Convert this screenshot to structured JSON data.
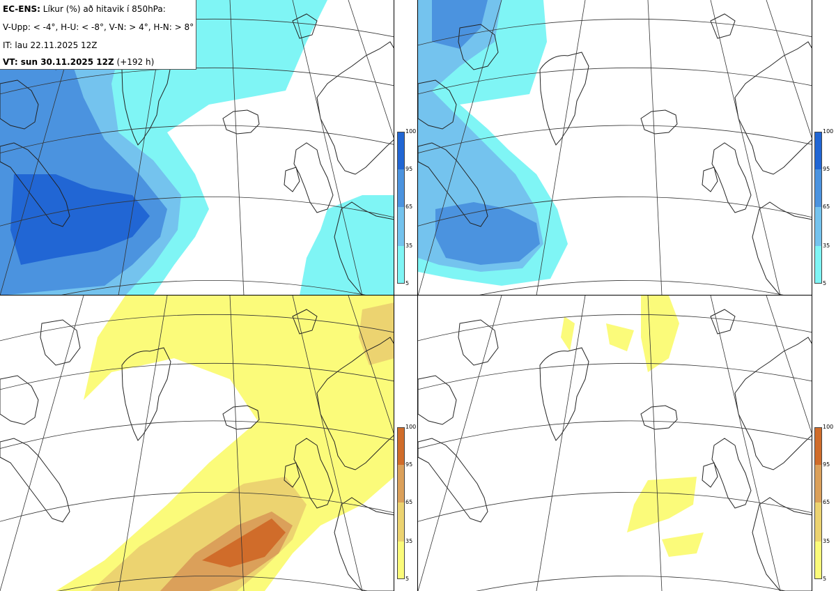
{
  "header": {
    "model": "EC-ENS:",
    "description": "Líkur (%) að hitavik í 850hPa:",
    "thresholds": "V-Upp: < -4°, H-U: < -8°, V-N: > 4°, H-N: > 8°",
    "initial_time": "IT: lau 22.11.2025 12Z",
    "valid_label": "VT: sun 30.11.2025 12Z",
    "valid_offset": "(+192 h)"
  },
  "panels": [
    {
      "id": "V-Upp",
      "palette": "blue"
    },
    {
      "id": "H-U",
      "palette": "blue"
    },
    {
      "id": "V-N",
      "palette": "yellow"
    },
    {
      "id": "H-N",
      "palette": "yellow"
    }
  ],
  "colorbar_blue": {
    "ticks": [
      "100",
      "95",
      "65",
      "35",
      "5"
    ],
    "colors": [
      "#2166d4",
      "#4b93df",
      "#74c3ee",
      "#7ff5f5"
    ]
  },
  "colorbar_warm": {
    "ticks": [
      "100",
      "95",
      "65",
      "35",
      "5"
    ],
    "colors": [
      "#d06c2a",
      "#dba05a",
      "#ecd370",
      "#fbfb7a"
    ]
  }
}
